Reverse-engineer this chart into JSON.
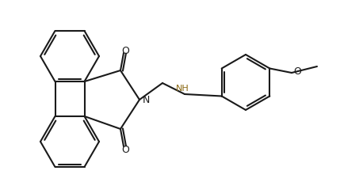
{
  "bg": "#ffffff",
  "lc": "#1a1a1a",
  "nhc": "#8B6914",
  "lw": 1.5,
  "lw_thin": 1.3,
  "figsize": [
    4.29,
    2.26
  ],
  "dpi": 100,
  "atoms": {
    "N_label": "N",
    "O1_label": "O",
    "O2_label": "O",
    "NH_label": "NH",
    "O3_label": "O"
  }
}
